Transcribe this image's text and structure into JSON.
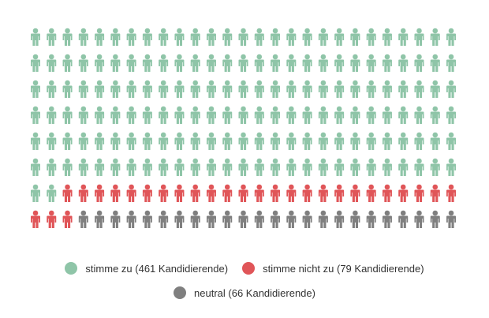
{
  "chart_data": {
    "type": "pictogram",
    "columns": 27,
    "icon": "person-icon",
    "series": [
      {
        "name": "stimme zu (461 Kandidierende)",
        "value": 461,
        "icons": 164,
        "color": "#8fc5a8"
      },
      {
        "name": "stimme nicht zu (79 Kandidierende)",
        "value": 79,
        "icons": 28,
        "color": "#e05558"
      },
      {
        "name": "neutral (66 Kandidierende)",
        "value": 66,
        "icons": 24,
        "color": "#7f7f7f"
      }
    ],
    "legend_position": "bottom"
  }
}
